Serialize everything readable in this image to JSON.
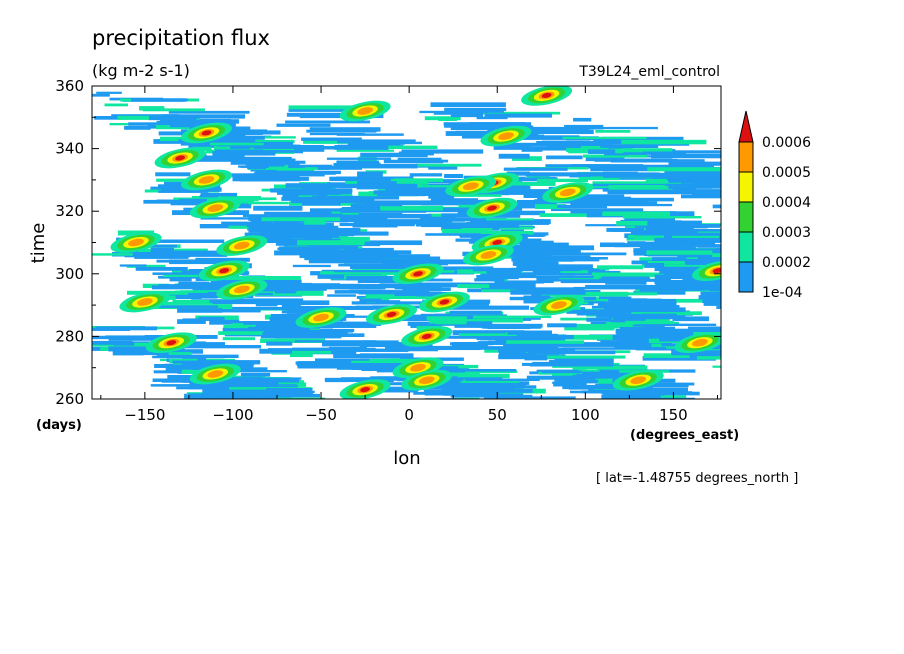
{
  "chart_data": {
    "type": "heatmap",
    "title": "precipitation flux",
    "units": "(kg m-2 s-1)",
    "experiment": "T39L24_eml_control",
    "xlabel": "lon",
    "xunits": "(degrees_east)",
    "ylabel": "time",
    "yunits": "(days)",
    "xlim": [
      -180,
      177
    ],
    "ylim": [
      260,
      360
    ],
    "x_ticks": [
      -150,
      -100,
      -50,
      0,
      50,
      100,
      150
    ],
    "y_ticks": [
      260,
      280,
      300,
      320,
      340,
      360
    ],
    "footnote": "[ lat=-1.48755 degrees_north ]",
    "colorbar": {
      "levels": [
        "1e-04",
        "0.0002",
        "0.0003",
        "0.0004",
        "0.0005",
        "0.0006"
      ],
      "colors": [
        "#1e9bf0",
        "#0fe6a0",
        "#32d232",
        "#f5f500",
        "#ff9900",
        "#dd1111"
      ],
      "extend": "max"
    },
    "bands": [
      {
        "lon": -165,
        "t": 355,
        "len": 95,
        "slope": 0.12
      },
      {
        "lon": -120,
        "t": 342,
        "len": 110,
        "slope": 0.13
      },
      {
        "lon": -60,
        "t": 349,
        "len": 120,
        "slope": 0.12
      },
      {
        "lon": 20,
        "t": 352,
        "len": 110,
        "slope": 0.11
      },
      {
        "lon": 90,
        "t": 347,
        "len": 95,
        "slope": 0.12
      },
      {
        "lon": -140,
        "t": 329,
        "len": 120,
        "slope": 0.12
      },
      {
        "lon": -40,
        "t": 333,
        "len": 110,
        "slope": 0.12
      },
      {
        "lon": 60,
        "t": 331,
        "len": 115,
        "slope": 0.12
      },
      {
        "lon": -170,
        "t": 312,
        "len": 110,
        "slope": 0.11
      },
      {
        "lon": -80,
        "t": 318,
        "len": 100,
        "slope": 0.12
      },
      {
        "lon": 20,
        "t": 318,
        "len": 120,
        "slope": 0.12
      },
      {
        "lon": 120,
        "t": 316,
        "len": 80,
        "slope": 0.11
      },
      {
        "lon": -150,
        "t": 297,
        "len": 115,
        "slope": 0.12
      },
      {
        "lon": -50,
        "t": 302,
        "len": 110,
        "slope": 0.12
      },
      {
        "lon": 40,
        "t": 301,
        "len": 120,
        "slope": 0.12
      },
      {
        "lon": 140,
        "t": 304,
        "len": 60,
        "slope": 0.1
      },
      {
        "lon": -175,
        "t": 283,
        "len": 110,
        "slope": 0.12
      },
      {
        "lon": -70,
        "t": 287,
        "len": 120,
        "slope": 0.12
      },
      {
        "lon": 30,
        "t": 285,
        "len": 110,
        "slope": 0.12
      },
      {
        "lon": 120,
        "t": 288,
        "len": 80,
        "slope": 0.11
      },
      {
        "lon": -140,
        "t": 272,
        "len": 120,
        "slope": 0.12
      },
      {
        "lon": -40,
        "t": 273,
        "len": 120,
        "slope": 0.12
      },
      {
        "lon": 70,
        "t": 274,
        "len": 110,
        "slope": 0.12
      },
      {
        "lon": -100,
        "t": 263,
        "len": 100,
        "slope": 0.1
      },
      {
        "lon": 20,
        "t": 263,
        "len": 110,
        "slope": 0.1
      }
    ],
    "cells": [
      {
        "lon": -115,
        "t": 345,
        "level": 6
      },
      {
        "lon": -25,
        "t": 352,
        "level": 5
      },
      {
        "lon": 78,
        "t": 357,
        "level": 6
      },
      {
        "lon": 55,
        "t": 344,
        "level": 5
      },
      {
        "lon": -130,
        "t": 337,
        "level": 6
      },
      {
        "lon": -115,
        "t": 330,
        "level": 5
      },
      {
        "lon": 48,
        "t": 329,
        "level": 6
      },
      {
        "lon": 35,
        "t": 328,
        "level": 5
      },
      {
        "lon": 90,
        "t": 326,
        "level": 5
      },
      {
        "lon": -110,
        "t": 321,
        "level": 5
      },
      {
        "lon": 47,
        "t": 321,
        "level": 6
      },
      {
        "lon": -155,
        "t": 310,
        "level": 5
      },
      {
        "lon": -95,
        "t": 309,
        "level": 5
      },
      {
        "lon": 50,
        "t": 310,
        "level": 6
      },
      {
        "lon": 45,
        "t": 306,
        "level": 5
      },
      {
        "lon": -105,
        "t": 301,
        "level": 6
      },
      {
        "lon": 5,
        "t": 300,
        "level": 6
      },
      {
        "lon": 175,
        "t": 301,
        "level": 6
      },
      {
        "lon": -95,
        "t": 295,
        "level": 5
      },
      {
        "lon": -150,
        "t": 291,
        "level": 5
      },
      {
        "lon": 20,
        "t": 291,
        "level": 6
      },
      {
        "lon": -10,
        "t": 287,
        "level": 6
      },
      {
        "lon": 85,
        "t": 290,
        "level": 5
      },
      {
        "lon": -135,
        "t": 278,
        "level": 6
      },
      {
        "lon": 10,
        "t": 280,
        "level": 6
      },
      {
        "lon": -50,
        "t": 286,
        "level": 5
      },
      {
        "lon": 165,
        "t": 278,
        "level": 5
      },
      {
        "lon": 5,
        "t": 270,
        "level": 5
      },
      {
        "lon": -25,
        "t": 263,
        "level": 6
      },
      {
        "lon": 10,
        "t": 266,
        "level": 5
      },
      {
        "lon": 130,
        "t": 266,
        "level": 5
      },
      {
        "lon": -110,
        "t": 268,
        "level": 5
      }
    ]
  }
}
